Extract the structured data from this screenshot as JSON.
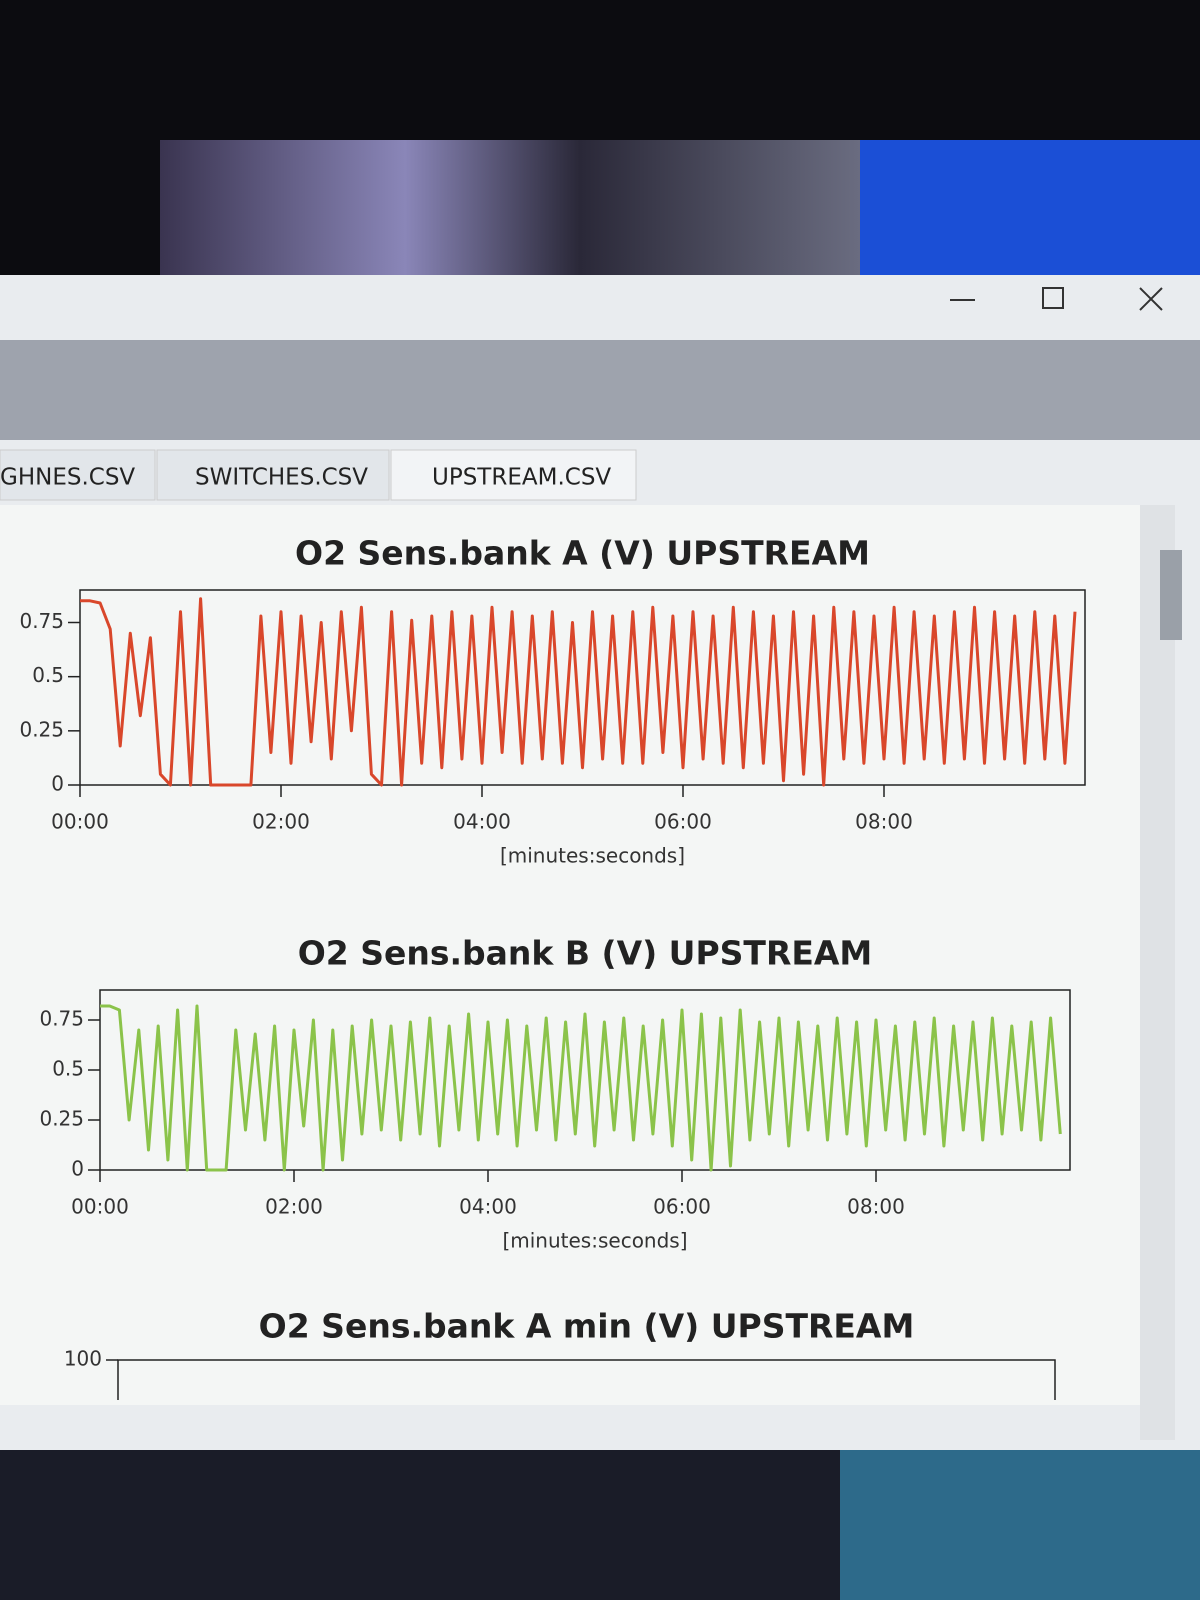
{
  "tabs": [
    "GHNES.CSV",
    "SWITCHES.CSV",
    "UPSTREAM.CSV"
  ],
  "chart_data": [
    {
      "type": "line",
      "title": "O2 Sens.bank A (V) UPSTREAM",
      "xlabel": "[minutes:seconds]",
      "xlim": [
        0,
        600
      ],
      "ylim": [
        0,
        0.9
      ],
      "xticks": [
        {
          "value": 0,
          "label": "00:00"
        },
        {
          "value": 120,
          "label": "02:00"
        },
        {
          "value": 240,
          "label": "04:00"
        },
        {
          "value": 360,
          "label": "06:00"
        },
        {
          "value": 480,
          "label": "08:00"
        }
      ],
      "yticks": [
        0,
        0.25,
        0.5,
        0.75
      ],
      "x": [
        0,
        6,
        12,
        18,
        24,
        30,
        36,
        42,
        48,
        54,
        60,
        66,
        72,
        78,
        84,
        90,
        96,
        102,
        108,
        114,
        120,
        126,
        132,
        138,
        144,
        150,
        156,
        162,
        168,
        174,
        180,
        186,
        192,
        198,
        204,
        210,
        216,
        222,
        228,
        234,
        240,
        246,
        252,
        258,
        264,
        270,
        276,
        282,
        288,
        294,
        300,
        306,
        312,
        318,
        324,
        330,
        336,
        342,
        348,
        354,
        360,
        366,
        372,
        378,
        384,
        390,
        396,
        402,
        408,
        414,
        420,
        426,
        432,
        438,
        444,
        450,
        456,
        462,
        468,
        474,
        480,
        486,
        492,
        498,
        504,
        510,
        516,
        522,
        528,
        534,
        540,
        546,
        552,
        558,
        564,
        570,
        576,
        582,
        588,
        594
      ],
      "series": [
        {
          "color": "#d9472b",
          "values": [
            0.85,
            0.85,
            0.84,
            0.72,
            0.18,
            0.7,
            0.32,
            0.68,
            0.05,
            0.0,
            0.8,
            0.0,
            0.86,
            0.0,
            0.0,
            0.0,
            0.0,
            0.0,
            0.78,
            0.15,
            0.8,
            0.1,
            0.78,
            0.2,
            0.75,
            0.12,
            0.8,
            0.25,
            0.82,
            0.05,
            0.0,
            0.8,
            0.0,
            0.76,
            0.1,
            0.78,
            0.08,
            0.8,
            0.12,
            0.78,
            0.1,
            0.82,
            0.15,
            0.8,
            0.1,
            0.78,
            0.12,
            0.8,
            0.1,
            0.75,
            0.08,
            0.8,
            0.12,
            0.78,
            0.1,
            0.8,
            0.1,
            0.82,
            0.15,
            0.78,
            0.08,
            0.8,
            0.12,
            0.78,
            0.1,
            0.82,
            0.08,
            0.8,
            0.1,
            0.78,
            0.02,
            0.8,
            0.05,
            0.78,
            0.0,
            0.82,
            0.12,
            0.8,
            0.1,
            0.78,
            0.12,
            0.82,
            0.1,
            0.8,
            0.12,
            0.78,
            0.1,
            0.8,
            0.12,
            0.82,
            0.1,
            0.8,
            0.12,
            0.78,
            0.1,
            0.8,
            0.12,
            0.78,
            0.1,
            0.8
          ]
        }
      ]
    },
    {
      "type": "line",
      "title": "O2 Sens.bank B (V) UPSTREAM",
      "xlabel": "[minutes:seconds]",
      "xlim": [
        0,
        600
      ],
      "ylim": [
        0,
        0.9
      ],
      "xticks": [
        {
          "value": 0,
          "label": "00:00"
        },
        {
          "value": 120,
          "label": "02:00"
        },
        {
          "value": 240,
          "label": "04:00"
        },
        {
          "value": 360,
          "label": "06:00"
        },
        {
          "value": 480,
          "label": "08:00"
        }
      ],
      "yticks": [
        0,
        0.25,
        0.5,
        0.75
      ],
      "x": [
        0,
        6,
        12,
        18,
        24,
        30,
        36,
        42,
        48,
        54,
        60,
        66,
        72,
        78,
        84,
        90,
        96,
        102,
        108,
        114,
        120,
        126,
        132,
        138,
        144,
        150,
        156,
        162,
        168,
        174,
        180,
        186,
        192,
        198,
        204,
        210,
        216,
        222,
        228,
        234,
        240,
        246,
        252,
        258,
        264,
        270,
        276,
        282,
        288,
        294,
        300,
        306,
        312,
        318,
        324,
        330,
        336,
        342,
        348,
        354,
        360,
        366,
        372,
        378,
        384,
        390,
        396,
        402,
        408,
        414,
        420,
        426,
        432,
        438,
        444,
        450,
        456,
        462,
        468,
        474,
        480,
        486,
        492,
        498,
        504,
        510,
        516,
        522,
        528,
        534,
        540,
        546,
        552,
        558,
        564,
        570,
        576,
        582,
        588,
        594
      ],
      "series": [
        {
          "color": "#8bc34a",
          "values": [
            0.82,
            0.82,
            0.8,
            0.25,
            0.7,
            0.1,
            0.72,
            0.05,
            0.8,
            0.0,
            0.82,
            0.0,
            0.0,
            0.0,
            0.7,
            0.2,
            0.68,
            0.15,
            0.72,
            0.0,
            0.7,
            0.22,
            0.75,
            0.0,
            0.7,
            0.05,
            0.72,
            0.18,
            0.75,
            0.2,
            0.72,
            0.15,
            0.74,
            0.18,
            0.76,
            0.12,
            0.72,
            0.2,
            0.78,
            0.15,
            0.74,
            0.18,
            0.75,
            0.12,
            0.72,
            0.2,
            0.76,
            0.15,
            0.74,
            0.18,
            0.78,
            0.12,
            0.74,
            0.2,
            0.76,
            0.15,
            0.72,
            0.18,
            0.75,
            0.12,
            0.8,
            0.05,
            0.78,
            0.0,
            0.76,
            0.02,
            0.8,
            0.15,
            0.74,
            0.18,
            0.76,
            0.12,
            0.74,
            0.2,
            0.72,
            0.15,
            0.76,
            0.18,
            0.74,
            0.12,
            0.75,
            0.2,
            0.72,
            0.15,
            0.74,
            0.18,
            0.76,
            0.12,
            0.72,
            0.2,
            0.74,
            0.15,
            0.76,
            0.18,
            0.72,
            0.2,
            0.74,
            0.15,
            0.76,
            0.18
          ]
        }
      ]
    },
    {
      "type": "line",
      "title": "O2 Sens.bank A min (V) UPSTREAM",
      "ylim": [
        0,
        100
      ],
      "yticks": [
        100
      ]
    }
  ]
}
